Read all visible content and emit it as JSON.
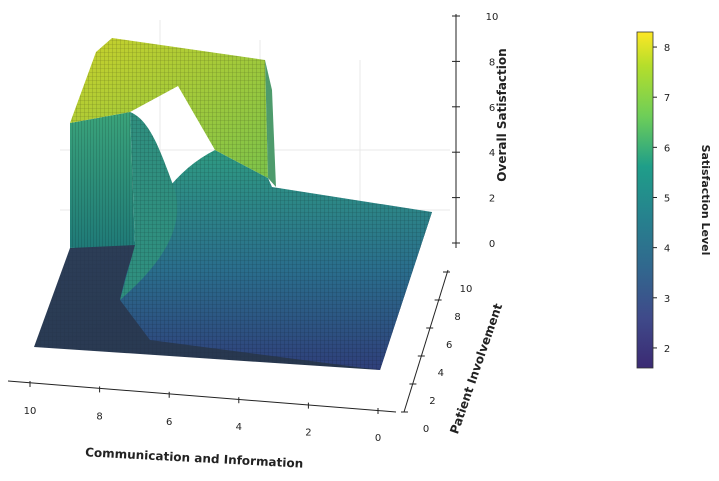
{
  "chart_data": {
    "type": "surface3d",
    "title": "",
    "x_axis": {
      "label": "Communication and Information",
      "ticks": [
        "10",
        "8",
        "6",
        "4",
        "2",
        "0"
      ],
      "range": [
        0,
        10
      ]
    },
    "y_axis": {
      "label": "Patient Involvement",
      "ticks": [
        "0",
        "2",
        "4",
        "6",
        "8",
        "10"
      ],
      "range": [
        0,
        10
      ]
    },
    "z_axis": {
      "label": "Overall Satisfaction",
      "ticks": [
        "0",
        "2",
        "4",
        "6",
        "8",
        "10"
      ],
      "range": [
        0,
        10
      ]
    },
    "colorbar": {
      "label": "Satisfaction Level",
      "colormap": "viridis",
      "range": [
        1.6,
        8.3
      ],
      "ticks": [
        "2",
        "3",
        "4",
        "5",
        "6",
        "7",
        "8"
      ]
    },
    "surface": {
      "description_regions": [
        {
          "name": "plateau_high",
          "x_range": [
            5.0,
            10
          ],
          "y_range": [
            6.7,
            10
          ],
          "z": 8.3
        },
        {
          "name": "bowl_low",
          "x_range": [
            3,
            7
          ],
          "y_range": [
            3,
            7
          ],
          "z_min": 1.6
        },
        {
          "name": "floor",
          "z": 0
        }
      ],
      "z_min": 0,
      "z_max": 8.3
    }
  }
}
